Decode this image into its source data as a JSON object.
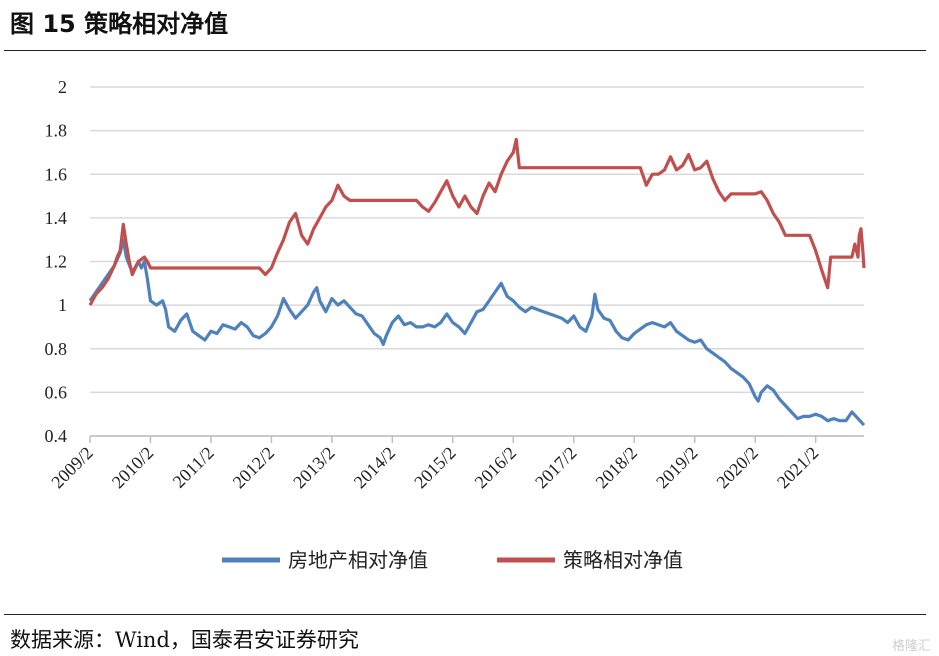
{
  "figure": {
    "title": "图 15 策略相对净值",
    "source": "数据来源：Wind，国泰君安证券研究",
    "watermark": "格隆汇"
  },
  "chart_data": {
    "type": "line",
    "title": "图 15 策略相对净值",
    "xlabel": "",
    "ylabel": "",
    "ylim": [
      0.4,
      2
    ],
    "yticks": [
      "0.4",
      "0.6",
      "0.8",
      "1",
      "1.2",
      "1.4",
      "1.6",
      "1.8",
      "2"
    ],
    "categories": [
      "2009/2",
      "2010/2",
      "2011/2",
      "2012/2",
      "2013/2",
      "2014/2",
      "2015/2",
      "2016/2",
      "2017/2",
      "2018/2",
      "2019/2",
      "2020/2",
      "2021/2"
    ],
    "x_end": 12.8,
    "grid": true,
    "legend_position": "bottom",
    "series": [
      {
        "name": "房地产相对净值",
        "color": "#4f81bd",
        "points": [
          [
            0,
            1.02
          ],
          [
            0.1,
            1.06
          ],
          [
            0.25,
            1.12
          ],
          [
            0.4,
            1.18
          ],
          [
            0.5,
            1.24
          ],
          [
            0.55,
            1.3
          ],
          [
            0.6,
            1.22
          ],
          [
            0.7,
            1.15
          ],
          [
            0.8,
            1.2
          ],
          [
            0.85,
            1.17
          ],
          [
            0.9,
            1.2
          ],
          [
            0.95,
            1.12
          ],
          [
            1.0,
            1.02
          ],
          [
            1.1,
            1.0
          ],
          [
            1.2,
            1.02
          ],
          [
            1.25,
            0.98
          ],
          [
            1.3,
            0.9
          ],
          [
            1.4,
            0.88
          ],
          [
            1.5,
            0.93
          ],
          [
            1.6,
            0.96
          ],
          [
            1.65,
            0.92
          ],
          [
            1.7,
            0.88
          ],
          [
            1.8,
            0.86
          ],
          [
            1.9,
            0.84
          ],
          [
            2.0,
            0.88
          ],
          [
            2.1,
            0.87
          ],
          [
            2.2,
            0.91
          ],
          [
            2.3,
            0.9
          ],
          [
            2.4,
            0.89
          ],
          [
            2.5,
            0.92
          ],
          [
            2.6,
            0.9
          ],
          [
            2.7,
            0.86
          ],
          [
            2.8,
            0.85
          ],
          [
            2.9,
            0.87
          ],
          [
            3.0,
            0.9
          ],
          [
            3.1,
            0.95
          ],
          [
            3.2,
            1.03
          ],
          [
            3.3,
            0.98
          ],
          [
            3.4,
            0.94
          ],
          [
            3.5,
            0.97
          ],
          [
            3.6,
            1.0
          ],
          [
            3.7,
            1.06
          ],
          [
            3.75,
            1.08
          ],
          [
            3.8,
            1.02
          ],
          [
            3.9,
            0.97
          ],
          [
            4.0,
            1.03
          ],
          [
            4.1,
            1.0
          ],
          [
            4.2,
            1.02
          ],
          [
            4.3,
            0.99
          ],
          [
            4.4,
            0.96
          ],
          [
            4.5,
            0.95
          ],
          [
            4.6,
            0.91
          ],
          [
            4.7,
            0.87
          ],
          [
            4.8,
            0.85
          ],
          [
            4.85,
            0.82
          ],
          [
            4.9,
            0.86
          ],
          [
            5.0,
            0.92
          ],
          [
            5.1,
            0.95
          ],
          [
            5.2,
            0.91
          ],
          [
            5.3,
            0.92
          ],
          [
            5.4,
            0.9
          ],
          [
            5.5,
            0.9
          ],
          [
            5.6,
            0.91
          ],
          [
            5.7,
            0.9
          ],
          [
            5.8,
            0.92
          ],
          [
            5.9,
            0.96
          ],
          [
            6.0,
            0.92
          ],
          [
            6.1,
            0.9
          ],
          [
            6.2,
            0.87
          ],
          [
            6.3,
            0.92
          ],
          [
            6.4,
            0.97
          ],
          [
            6.5,
            0.98
          ],
          [
            6.6,
            1.02
          ],
          [
            6.7,
            1.06
          ],
          [
            6.8,
            1.1
          ],
          [
            6.9,
            1.04
          ],
          [
            7.0,
            1.02
          ],
          [
            7.1,
            0.99
          ],
          [
            7.2,
            0.97
          ],
          [
            7.3,
            0.99
          ],
          [
            7.4,
            0.98
          ],
          [
            7.5,
            0.97
          ],
          [
            7.6,
            0.96
          ],
          [
            7.7,
            0.95
          ],
          [
            7.8,
            0.94
          ],
          [
            7.9,
            0.92
          ],
          [
            8.0,
            0.95
          ],
          [
            8.1,
            0.9
          ],
          [
            8.2,
            0.88
          ],
          [
            8.3,
            0.95
          ],
          [
            8.35,
            1.05
          ],
          [
            8.4,
            0.98
          ],
          [
            8.5,
            0.94
          ],
          [
            8.6,
            0.93
          ],
          [
            8.7,
            0.88
          ],
          [
            8.8,
            0.85
          ],
          [
            8.9,
            0.84
          ],
          [
            9.0,
            0.87
          ],
          [
            9.1,
            0.89
          ],
          [
            9.2,
            0.91
          ],
          [
            9.3,
            0.92
          ],
          [
            9.4,
            0.91
          ],
          [
            9.5,
            0.9
          ],
          [
            9.6,
            0.92
          ],
          [
            9.7,
            0.88
          ],
          [
            9.8,
            0.86
          ],
          [
            9.9,
            0.84
          ],
          [
            10.0,
            0.83
          ],
          [
            10.1,
            0.84
          ],
          [
            10.2,
            0.8
          ],
          [
            10.3,
            0.78
          ],
          [
            10.4,
            0.76
          ],
          [
            10.5,
            0.74
          ],
          [
            10.6,
            0.71
          ],
          [
            10.7,
            0.69
          ],
          [
            10.8,
            0.67
          ],
          [
            10.9,
            0.64
          ],
          [
            11.0,
            0.58
          ],
          [
            11.05,
            0.56
          ],
          [
            11.1,
            0.6
          ],
          [
            11.2,
            0.63
          ],
          [
            11.3,
            0.61
          ],
          [
            11.4,
            0.57
          ],
          [
            11.5,
            0.54
          ],
          [
            11.6,
            0.51
          ],
          [
            11.7,
            0.48
          ],
          [
            11.8,
            0.49
          ],
          [
            11.9,
            0.49
          ],
          [
            12.0,
            0.5
          ],
          [
            12.1,
            0.49
          ],
          [
            12.2,
            0.47
          ],
          [
            12.3,
            0.48
          ],
          [
            12.4,
            0.47
          ],
          [
            12.5,
            0.47
          ],
          [
            12.6,
            0.51
          ],
          [
            12.7,
            0.48
          ],
          [
            12.8,
            0.45
          ]
        ]
      },
      {
        "name": "策略相对净值",
        "color": "#c0504d",
        "points": [
          [
            0,
            1.0
          ],
          [
            0.1,
            1.05
          ],
          [
            0.2,
            1.08
          ],
          [
            0.3,
            1.12
          ],
          [
            0.4,
            1.18
          ],
          [
            0.45,
            1.22
          ],
          [
            0.5,
            1.25
          ],
          [
            0.55,
            1.37
          ],
          [
            0.6,
            1.28
          ],
          [
            0.65,
            1.2
          ],
          [
            0.7,
            1.14
          ],
          [
            0.8,
            1.2
          ],
          [
            0.9,
            1.22
          ],
          [
            0.95,
            1.2
          ],
          [
            1.0,
            1.17
          ],
          [
            1.5,
            1.17
          ],
          [
            2.0,
            1.17
          ],
          [
            2.5,
            1.17
          ],
          [
            2.8,
            1.17
          ],
          [
            2.9,
            1.14
          ],
          [
            3.0,
            1.17
          ],
          [
            3.1,
            1.24
          ],
          [
            3.2,
            1.3
          ],
          [
            3.3,
            1.38
          ],
          [
            3.4,
            1.42
          ],
          [
            3.5,
            1.32
          ],
          [
            3.6,
            1.28
          ],
          [
            3.7,
            1.35
          ],
          [
            3.8,
            1.4
          ],
          [
            3.9,
            1.45
          ],
          [
            4.0,
            1.48
          ],
          [
            4.1,
            1.55
          ],
          [
            4.2,
            1.5
          ],
          [
            4.3,
            1.48
          ],
          [
            4.5,
            1.48
          ],
          [
            5.0,
            1.48
          ],
          [
            5.4,
            1.48
          ],
          [
            5.5,
            1.45
          ],
          [
            5.6,
            1.43
          ],
          [
            5.7,
            1.47
          ],
          [
            5.8,
            1.52
          ],
          [
            5.9,
            1.57
          ],
          [
            6.0,
            1.5
          ],
          [
            6.1,
            1.45
          ],
          [
            6.2,
            1.5
          ],
          [
            6.3,
            1.45
          ],
          [
            6.4,
            1.42
          ],
          [
            6.5,
            1.5
          ],
          [
            6.6,
            1.56
          ],
          [
            6.7,
            1.52
          ],
          [
            6.8,
            1.6
          ],
          [
            6.9,
            1.66
          ],
          [
            7.0,
            1.7
          ],
          [
            7.05,
            1.76
          ],
          [
            7.1,
            1.63
          ],
          [
            7.5,
            1.63
          ],
          [
            8.0,
            1.63
          ],
          [
            8.5,
            1.63
          ],
          [
            9.0,
            1.63
          ],
          [
            9.1,
            1.63
          ],
          [
            9.2,
            1.55
          ],
          [
            9.3,
            1.6
          ],
          [
            9.4,
            1.6
          ],
          [
            9.5,
            1.62
          ],
          [
            9.6,
            1.68
          ],
          [
            9.7,
            1.62
          ],
          [
            9.8,
            1.64
          ],
          [
            9.9,
            1.69
          ],
          [
            10.0,
            1.62
          ],
          [
            10.1,
            1.63
          ],
          [
            10.2,
            1.66
          ],
          [
            10.3,
            1.58
          ],
          [
            10.4,
            1.52
          ],
          [
            10.5,
            1.48
          ],
          [
            10.6,
            1.51
          ],
          [
            11.0,
            1.51
          ],
          [
            11.1,
            1.52
          ],
          [
            11.2,
            1.48
          ],
          [
            11.3,
            1.42
          ],
          [
            11.4,
            1.38
          ],
          [
            11.5,
            1.32
          ],
          [
            11.9,
            1.32
          ],
          [
            12.0,
            1.25
          ],
          [
            12.1,
            1.16
          ],
          [
            12.2,
            1.08
          ],
          [
            12.25,
            1.22
          ],
          [
            12.3,
            1.22
          ],
          [
            12.5,
            1.22
          ],
          [
            12.6,
            1.22
          ],
          [
            12.65,
            1.28
          ],
          [
            12.7,
            1.22
          ],
          [
            12.72,
            1.32
          ],
          [
            12.75,
            1.35
          ],
          [
            12.78,
            1.25
          ],
          [
            12.8,
            1.17
          ]
        ]
      }
    ]
  }
}
